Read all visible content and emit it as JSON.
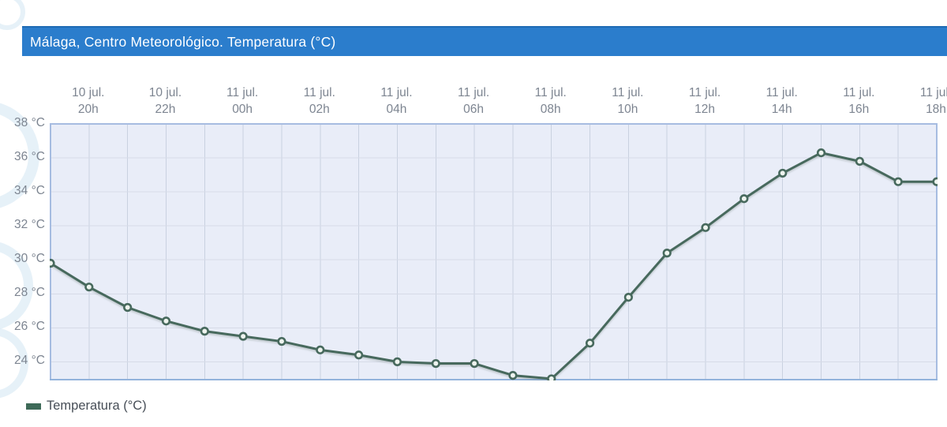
{
  "title_bar": {
    "text": "Málaga, Centro Meteorológico. Temperatura (°C)",
    "bg_color": "#2b7dcc",
    "text_color": "#ffffff"
  },
  "legend": {
    "label": "Temperatura (°C)",
    "marker_color": "#3e6a58"
  },
  "chart_data": {
    "type": "line",
    "title": "Málaga, Centro Meteorológico. Temperatura (°C)",
    "series": [
      {
        "name": "Temperatura (°C)",
        "values": [
          29.8,
          28.4,
          27.2,
          26.4,
          25.8,
          25.5,
          25.2,
          24.7,
          24.4,
          24.0,
          23.9,
          23.9,
          23.2,
          23.0,
          25.1,
          27.8,
          30.4,
          31.9,
          33.6,
          35.1,
          36.3,
          35.8,
          34.6,
          34.6
        ]
      }
    ],
    "x": [
      "10 jul. 19h",
      "10 jul. 20h",
      "10 jul. 21h",
      "10 jul. 22h",
      "10 jul. 23h",
      "11 jul. 00h",
      "11 jul. 01h",
      "11 jul. 02h",
      "11 jul. 03h",
      "11 jul. 04h",
      "11 jul. 05h",
      "11 jul. 06h",
      "11 jul. 07h",
      "11 jul. 08h",
      "11 jul. 09h",
      "11 jul. 10h",
      "11 jul. 11h",
      "11 jul. 12h",
      "11 jul. 13h",
      "11 jul. 14h",
      "11 jul. 15h",
      "11 jul. 16h",
      "11 jul. 17h",
      "11 jul. 18h"
    ],
    "x_ticks": [
      {
        "index": 1,
        "line1": "10 jul.",
        "line2": "20h"
      },
      {
        "index": 3,
        "line1": "10 jul.",
        "line2": "22h"
      },
      {
        "index": 5,
        "line1": "11 jul.",
        "line2": "00h"
      },
      {
        "index": 7,
        "line1": "11 jul.",
        "line2": "02h"
      },
      {
        "index": 9,
        "line1": "11 jul.",
        "line2": "04h"
      },
      {
        "index": 11,
        "line1": "11 jul.",
        "line2": "06h"
      },
      {
        "index": 13,
        "line1": "11 jul.",
        "line2": "08h"
      },
      {
        "index": 15,
        "line1": "11 jul.",
        "line2": "10h"
      },
      {
        "index": 17,
        "line1": "11 jul.",
        "line2": "12h"
      },
      {
        "index": 19,
        "line1": "11 jul.",
        "line2": "14h"
      },
      {
        "index": 21,
        "line1": "11 jul.",
        "line2": "16h"
      },
      {
        "index": 23,
        "line1": "11 jul.",
        "line2": "18h"
      }
    ],
    "y_ticks": [
      {
        "value": 38,
        "label": "38 °C"
      },
      {
        "value": 36,
        "label": "36 °C"
      },
      {
        "value": 34,
        "label": "34 °C"
      },
      {
        "value": 32,
        "label": "32 °C"
      },
      {
        "value": 30,
        "label": "30 °C"
      },
      {
        "value": 28,
        "label": "28 °C"
      },
      {
        "value": 26,
        "label": "26 °C"
      },
      {
        "value": 24,
        "label": "24 °C"
      }
    ],
    "ylim": [
      22.95,
      38
    ],
    "grid": true,
    "legend_position": "bottom-left",
    "xlabel": "",
    "ylabel": "",
    "line_color": "#47695d",
    "marker_fill": "#eef4ef",
    "plot_bg": "#e9edf8",
    "grid_color_vertical": "#c9d1e0",
    "grid_color_horizontal": "#d6dbe7",
    "border_color": "#a6bce1",
    "bottom_border_color": "#93b3dc"
  }
}
